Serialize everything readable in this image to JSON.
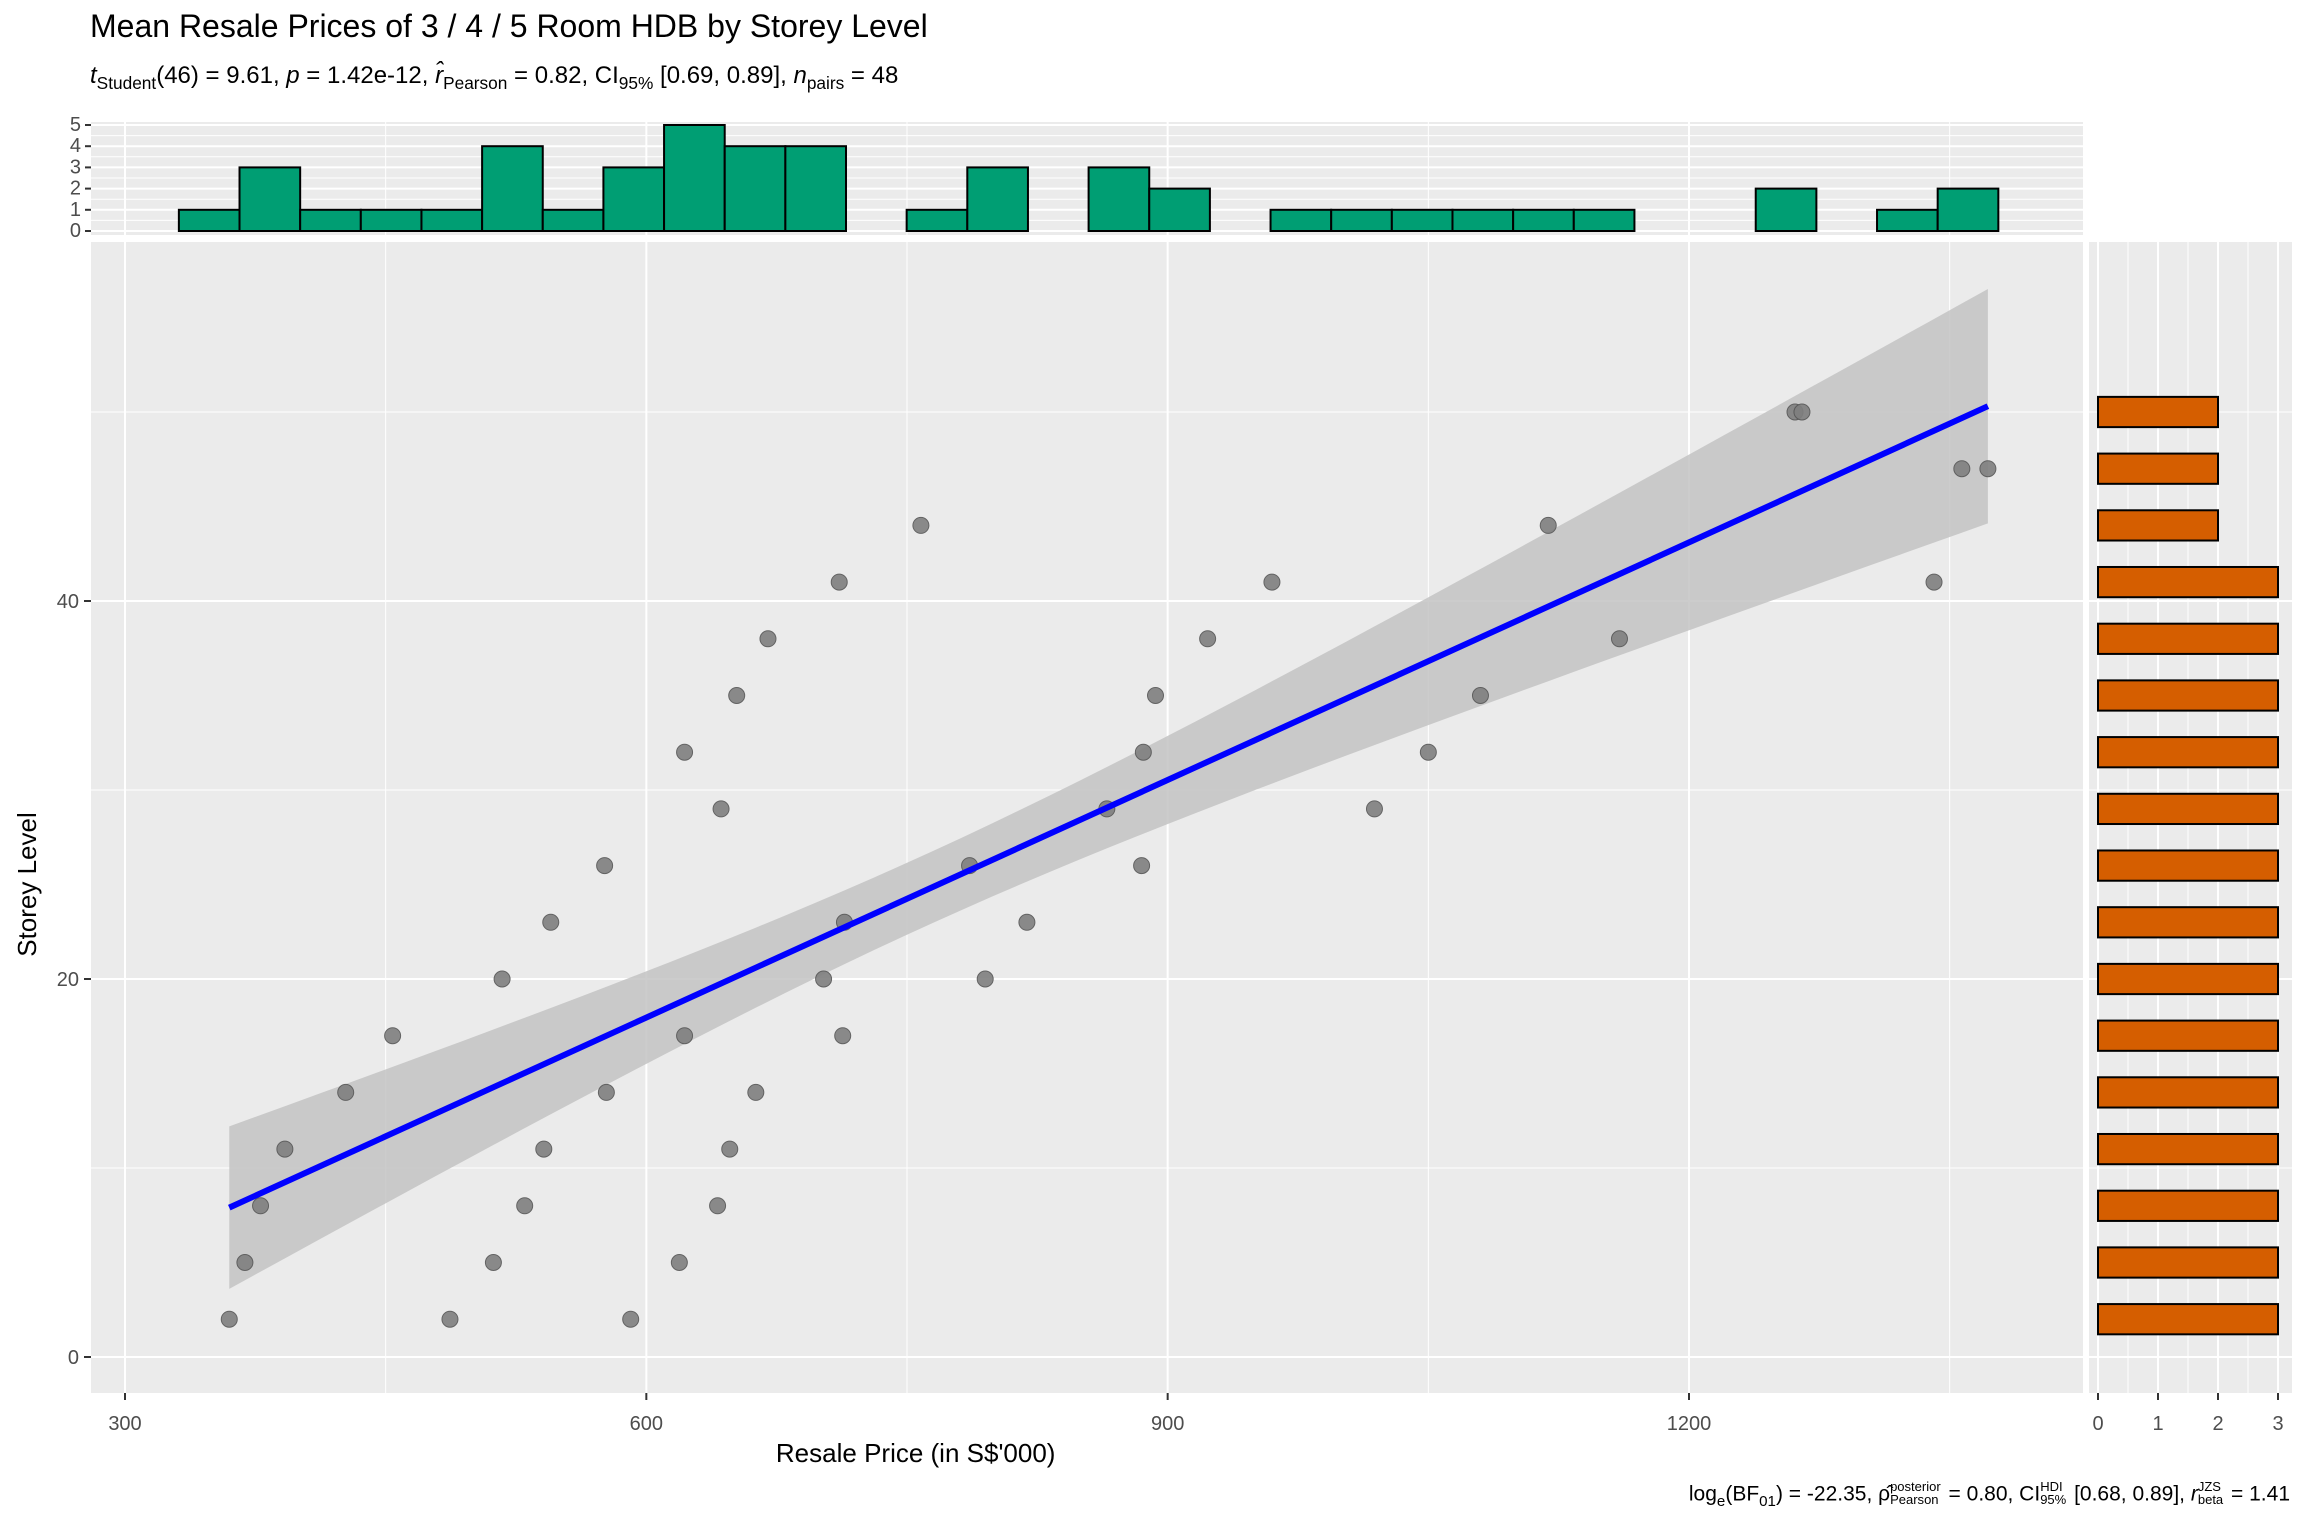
{
  "chart_data": {
    "type": "scatter",
    "title": "Mean Resale Prices of 3 / 4 / 5 Room HDB by Storey Level",
    "subtitle": {
      "t": "t",
      "t_sub": "Student",
      "t_val": "(46) = 9.61, ",
      "p": "p",
      "p_val": " = 1.42e-12, ",
      "r": "r̂",
      "r_sub": "Pearson",
      "r_val": " = 0.82, CI",
      "ci_sub": "95%",
      "ci_val": " [0.69, 0.89], ",
      "n": "n",
      "n_sub": "pairs",
      "n_val": " = 48"
    },
    "caption": {
      "log": "log",
      "log_sub": "e",
      "bf": "(BF",
      "bf_sub": "01",
      "bf_val": ") = -22.35, ",
      "rho": "ρ̂",
      "rho_sup": "posterior",
      "rho_sub": "Pearson",
      "rho_val": " = 0.80, CI",
      "ci_sup": "HDI",
      "ci_sub": "95%",
      "ci_val": " [0.68, 0.89], ",
      "r": "r",
      "r_sup": "JZS",
      "r_sub": "beta",
      "r_val": " = 1.41"
    },
    "xlabel": "Resale Price (in S$'000)",
    "ylabel": "Storey Level",
    "xlim": [
      285,
      1420
    ],
    "ylim": [
      -2,
      58.5
    ],
    "xticks": [
      "300",
      "600",
      "900",
      "1200"
    ],
    "yticks": [
      "0",
      "20",
      "40"
    ],
    "points": [
      [
        360,
        2
      ],
      [
        369,
        5
      ],
      [
        378,
        8
      ],
      [
        392,
        11
      ],
      [
        427,
        14
      ],
      [
        454,
        17
      ],
      [
        517,
        20
      ],
      [
        545,
        23
      ],
      [
        576,
        26
      ],
      [
        577,
        14
      ],
      [
        541,
        11
      ],
      [
        530,
        8
      ],
      [
        512,
        5
      ],
      [
        487,
        2
      ],
      [
        591,
        2
      ],
      [
        619,
        5
      ],
      [
        641,
        8
      ],
      [
        648,
        11
      ],
      [
        663,
        14
      ],
      [
        622,
        17
      ],
      [
        622,
        32
      ],
      [
        643,
        29
      ],
      [
        652,
        35
      ],
      [
        670,
        38
      ],
      [
        711,
        41
      ],
      [
        758,
        44
      ],
      [
        702,
        20
      ],
      [
        713,
        17
      ],
      [
        714,
        23
      ],
      [
        786,
        26
      ],
      [
        795,
        20
      ],
      [
        819,
        23
      ],
      [
        865,
        29
      ],
      [
        886,
        32
      ],
      [
        885,
        26
      ],
      [
        893,
        35
      ],
      [
        923,
        38
      ],
      [
        960,
        41
      ],
      [
        1019,
        29
      ],
      [
        1050,
        32
      ],
      [
        1080,
        35
      ],
      [
        1119,
        44
      ],
      [
        1160,
        38
      ],
      [
        1261,
        50
      ],
      [
        1265,
        50
      ],
      [
        1341,
        41
      ],
      [
        1357,
        47
      ],
      [
        1372,
        47
      ]
    ],
    "regression": {
      "intercept": -7.18,
      "slope": 0.0419,
      "x_range": [
        360,
        1372
      ],
      "ci_center_x": 760,
      "ci_min_halfwidth": 1.9,
      "ci_curvature": 9.3e-05
    },
    "colors": {
      "points": "#7f7f7f",
      "line": "#0000ff",
      "band": "#c3c3c3",
      "top_hist": "#009e73",
      "right_hist": "#d55e00",
      "panel": "#ebebeb"
    },
    "top_histogram": {
      "bin_start": 331,
      "bin_width": 34.9,
      "counts": [
        1,
        3,
        1,
        1,
        1,
        4,
        1,
        3,
        5,
        4,
        4,
        0,
        1,
        3,
        0,
        3,
        2,
        0,
        1,
        1,
        1,
        1,
        1,
        1,
        0,
        0,
        2,
        0,
        1,
        2
      ],
      "yticks": [
        "0",
        "1",
        "2",
        "3",
        "4",
        "5"
      ]
    },
    "right_histogram": {
      "bins": [
        2,
        5,
        8,
        11,
        14,
        17,
        20,
        23,
        26,
        29,
        32,
        35,
        38,
        41,
        44,
        47,
        50
      ],
      "counts": [
        3,
        3,
        3,
        3,
        3,
        3,
        3,
        3,
        3,
        3,
        3,
        3,
        3,
        3,
        2,
        2,
        2
      ],
      "bin_width": 1.6,
      "xticks": [
        "0",
        "1",
        "2",
        "3"
      ]
    }
  }
}
